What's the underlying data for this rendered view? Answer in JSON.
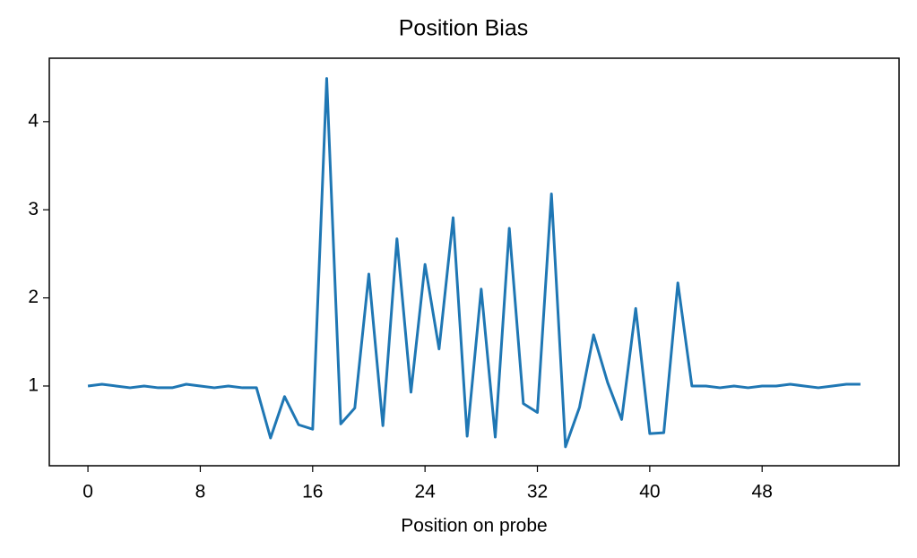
{
  "chart_data": {
    "type": "line",
    "title": "Position Bias",
    "x_label": "Position on probe",
    "x": [
      0,
      1,
      2,
      3,
      4,
      5,
      6,
      7,
      8,
      9,
      10,
      11,
      12,
      13,
      14,
      15,
      16,
      17,
      18,
      19,
      20,
      21,
      22,
      23,
      24,
      25,
      26,
      27,
      28,
      29,
      30,
      31,
      32,
      33,
      34,
      35,
      36,
      37,
      38,
      39,
      40,
      41,
      42,
      43,
      44,
      45,
      46,
      47,
      48,
      49,
      50,
      51,
      52,
      53,
      54,
      55
    ],
    "series": [
      {
        "color": "#1f77b4",
        "values": [
          1.0,
          1.02,
          1.0,
          0.98,
          1.0,
          0.98,
          0.98,
          1.02,
          1.0,
          0.98,
          1.0,
          0.98,
          0.98,
          0.41,
          0.88,
          0.56,
          0.51,
          4.49,
          0.57,
          0.75,
          2.27,
          0.55,
          2.67,
          0.93,
          2.38,
          1.42,
          2.91,
          0.43,
          2.1,
          0.42,
          2.79,
          0.8,
          0.7,
          3.18,
          0.31,
          0.76,
          1.58,
          1.04,
          0.62,
          1.88,
          0.46,
          0.47,
          2.17,
          1.0,
          1.0,
          0.98,
          1.0,
          0.98,
          1.0,
          1.0,
          1.02,
          1.0,
          0.98,
          1.0,
          1.02,
          1.02
        ]
      }
    ],
    "xlim": [
      -2.75,
      57.75
    ],
    "ylim": [
      0.095,
      4.72
    ],
    "xticks": [
      0,
      8,
      16,
      24,
      32,
      40,
      48
    ],
    "yticks": [
      1,
      2,
      3,
      4
    ],
    "grid": false
  }
}
